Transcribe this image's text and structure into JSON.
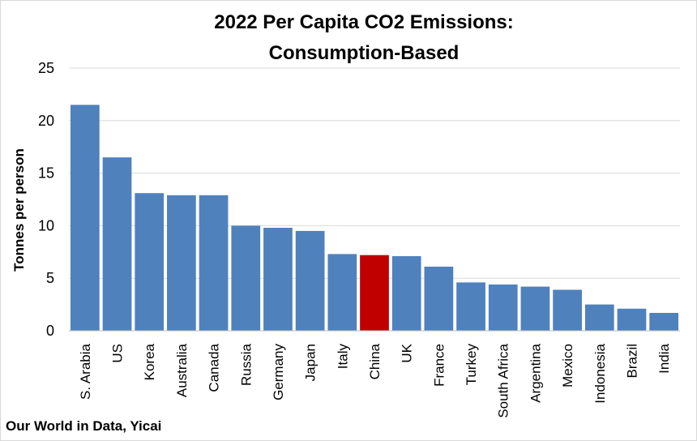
{
  "chart_data": {
    "type": "bar",
    "title": [
      "2022 Per Capita CO2 Emissions:",
      "Consumption-Based"
    ],
    "xlabel": "",
    "ylabel": "Tonnes per person",
    "ylim": [
      0,
      25
    ],
    "yticks": [
      0,
      5,
      10,
      15,
      20,
      25
    ],
    "grid": true,
    "categories": [
      "S. Arabia",
      "US",
      "Korea",
      "Australia",
      "Canada",
      "Russia",
      "Germany",
      "Japan",
      "Italy",
      "China",
      "UK",
      "France",
      "Turkey",
      "South Africa",
      "Argentina",
      "Mexico",
      "Indonesia",
      "Brazil",
      "India"
    ],
    "values": [
      21.5,
      16.5,
      13.1,
      12.9,
      12.9,
      10.0,
      9.8,
      9.5,
      7.3,
      7.2,
      7.1,
      6.1,
      4.6,
      4.4,
      4.2,
      3.9,
      2.5,
      2.1,
      1.7
    ],
    "colors": {
      "default": "#4f81bd",
      "highlight": "#c00000",
      "highlight_category": "China"
    },
    "source": "Our World in Data, Yicai"
  }
}
